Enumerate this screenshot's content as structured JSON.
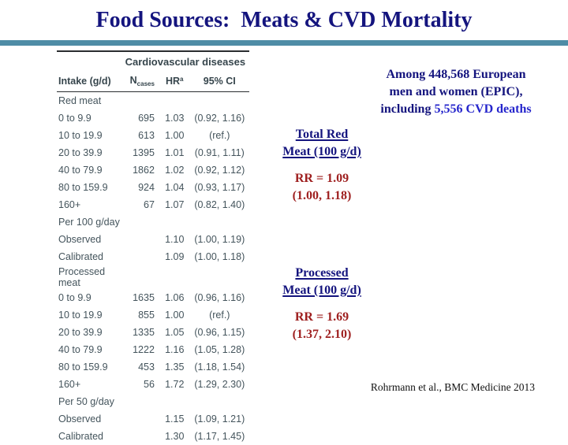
{
  "slide": {
    "title": "Food Sources:  Meats & CVD Mortality",
    "citation": "Rohrmann et al., BMC Medicine 2013"
  },
  "colors": {
    "title_navy": "#14147e",
    "accent_bar_teal": "#4e8ca6",
    "highlight_blue": "#2525cc",
    "rr_dark_red": "#9e1f1f",
    "table_text": "#44545c"
  },
  "annotations": {
    "epic": {
      "line1": "Among 448,568 European",
      "line2": "men and women (EPIC),",
      "line3_prefix": "including ",
      "line3_highlight": "5,556 CVD deaths"
    },
    "total_red": {
      "heading_line1": "Total Red",
      "heading_line2": "Meat (100 g/d)",
      "rr": "RR = 1.09",
      "ci": "(1.00, 1.18)"
    },
    "processed": {
      "heading_line1": "Processed",
      "heading_line2": "Meat (100 g/d)",
      "rr": "RR = 1.69",
      "ci": "(1.37, 2.10)"
    }
  },
  "table": {
    "spanner": "Cardiovascular diseases",
    "columns": {
      "intake": "Intake (g/d)",
      "n_base": "N",
      "n_sub": "cases",
      "hr_base": "HR",
      "hr_sup": "a",
      "ci": "95% CI"
    },
    "rows": [
      {
        "intake": "Red meat",
        "n": "",
        "hr": "",
        "ci": ""
      },
      {
        "intake": "0 to 9.9",
        "n": "695",
        "hr": "1.03",
        "ci": "(0.92, 1.16)"
      },
      {
        "intake": "10 to 19.9",
        "n": "613",
        "hr": "1.00",
        "ci": "(ref.)"
      },
      {
        "intake": "20 to 39.9",
        "n": "1395",
        "hr": "1.01",
        "ci": "(0.91, 1.11)"
      },
      {
        "intake": "40 to 79.9",
        "n": "1862",
        "hr": "1.02",
        "ci": "(0.92, 1.12)"
      },
      {
        "intake": "80 to 159.9",
        "n": "924",
        "hr": "1.04",
        "ci": "(0.93, 1.17)"
      },
      {
        "intake": "160+",
        "n": "67",
        "hr": "1.07",
        "ci": "(0.82, 1.40)"
      },
      {
        "intake": "Per 100 g/day",
        "n": "",
        "hr": "",
        "ci": ""
      },
      {
        "intake": "Observed",
        "n": "",
        "hr": "1.10",
        "ci": "(1.00, 1.19)"
      },
      {
        "intake": "Calibrated",
        "n": "",
        "hr": "1.09",
        "ci": "(1.00, 1.18)"
      },
      {
        "intake": "Processed meat",
        "n": "",
        "hr": "",
        "ci": ""
      },
      {
        "intake": "0 to 9.9",
        "n": "1635",
        "hr": "1.06",
        "ci": "(0.96, 1.16)"
      },
      {
        "intake": "10 to 19.9",
        "n": "855",
        "hr": "1.00",
        "ci": "(ref.)"
      },
      {
        "intake": "20 to 39.9",
        "n": "1335",
        "hr": "1.05",
        "ci": "(0.96, 1.15)"
      },
      {
        "intake": "40 to 79.9",
        "n": "1222",
        "hr": "1.16",
        "ci": "(1.05, 1.28)"
      },
      {
        "intake": "80 to 159.9",
        "n": "453",
        "hr": "1.35",
        "ci": "(1.18, 1.54)"
      },
      {
        "intake": "160+",
        "n": "56",
        "hr": "1.72",
        "ci": "(1.29, 2.30)"
      },
      {
        "intake": "Per 50 g/day",
        "n": "",
        "hr": "",
        "ci": ""
      },
      {
        "intake": "Observed",
        "n": "",
        "hr": "1.15",
        "ci": "(1.09, 1.21)"
      },
      {
        "intake": "Calibrated",
        "n": "",
        "hr": "1.30",
        "ci": "(1.17, 1.45)"
      }
    ]
  }
}
